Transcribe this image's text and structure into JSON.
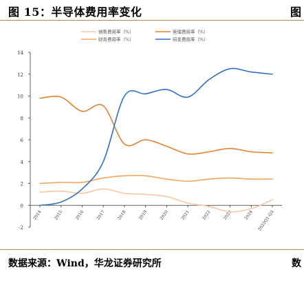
{
  "figure": {
    "title": "图 15：半导体费用率变化",
    "title_right_fragment": "图",
    "source": "数据来源：Wind，华龙证券研究所",
    "source_right_fragment": "数"
  },
  "chart_data": {
    "type": "line",
    "title": "",
    "xlabel": "",
    "ylabel": "",
    "categories": [
      "2014",
      "2015",
      "2016",
      "2017",
      "2018",
      "2019",
      "2020",
      "2021",
      "2022",
      "2023",
      "2024",
      "2025Q1-Q3"
    ],
    "ylim": [
      -2,
      14
    ],
    "yticks": [
      -2,
      0,
      2,
      4,
      6,
      8,
      10,
      12,
      14
    ],
    "grid": false,
    "legend_position": "top",
    "series": [
      {
        "name": "销售费用率（%）",
        "color": "#f3c8a6",
        "values": [
          1.2,
          1.3,
          1.1,
          1.5,
          1.1,
          1.0,
          0.8,
          0.2,
          -0.1,
          -0.6,
          -0.3,
          0.5
        ]
      },
      {
        "name": "管理费用率（%）",
        "color": "#e3822e",
        "values": [
          9.8,
          9.9,
          8.6,
          9.1,
          5.6,
          6.0,
          5.4,
          4.7,
          4.9,
          5.2,
          4.9,
          4.8
        ]
      },
      {
        "name": "财务费用率（%）",
        "color": "#f0a65e",
        "values": [
          2.0,
          2.1,
          2.1,
          2.5,
          2.7,
          2.7,
          2.4,
          2.2,
          2.4,
          2.5,
          2.4,
          2.4
        ]
      },
      {
        "name": "研发费用率（%）",
        "color": "#2f6fbf",
        "values": [
          0.0,
          0.3,
          1.5,
          4.0,
          10.0,
          10.2,
          10.6,
          9.9,
          11.5,
          12.5,
          12.2,
          12.0
        ]
      }
    ]
  }
}
